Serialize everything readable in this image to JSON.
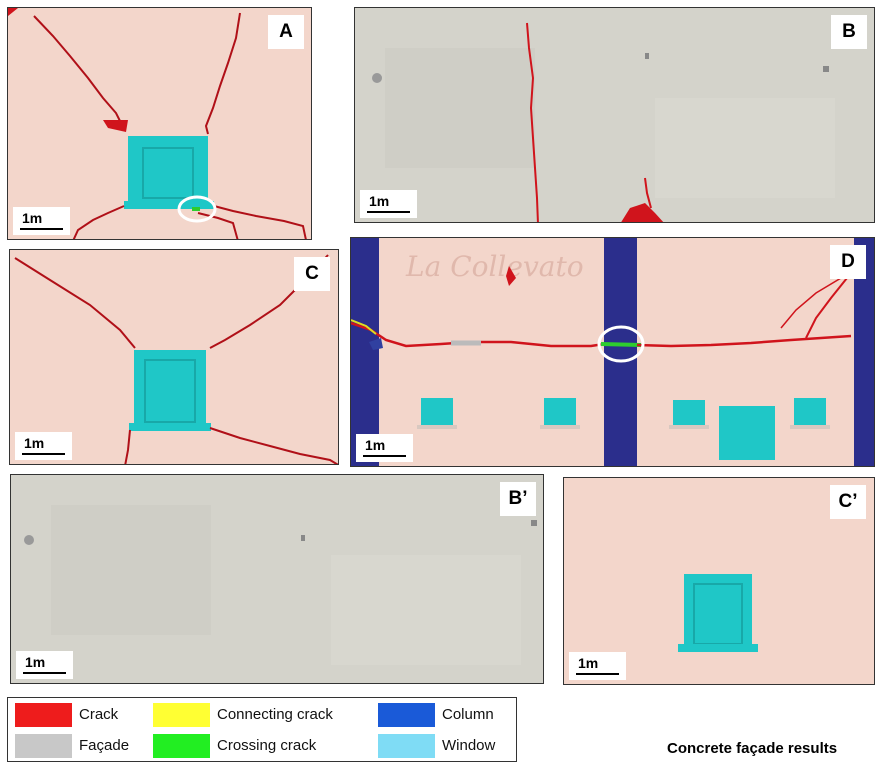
{
  "panels": {
    "a": {
      "label": "A",
      "scale": "1m"
    },
    "b": {
      "label": "B",
      "scale": "1m"
    },
    "c": {
      "label": "C",
      "scale": "1m"
    },
    "d": {
      "label": "D",
      "scale": "1m",
      "signage": "La Collevato"
    },
    "b2": {
      "label": "B’",
      "scale": "1m"
    },
    "c2": {
      "label": "C’",
      "scale": "1m"
    }
  },
  "legend": {
    "items": [
      {
        "label": "Crack",
        "color": "#ee1c1c"
      },
      {
        "label": "Connecting crack",
        "color": "#ffff33"
      },
      {
        "label": "Column",
        "color": "#1a5ad8"
      },
      {
        "label": "Façade",
        "color": "#c8c8c8"
      },
      {
        "label": "Crossing crack",
        "color": "#22ee22"
      },
      {
        "label": "Window",
        "color": "#7fdcf5"
      }
    ]
  },
  "caption": "Concrete façade results",
  "colors": {
    "facade_pink": "#f3d6cb",
    "facade_grey": "#d4d3cb",
    "window": "#1fc7c7",
    "crack": "#d0141c",
    "column": "#2b2e8c",
    "crossing": "#2ecc2e"
  }
}
